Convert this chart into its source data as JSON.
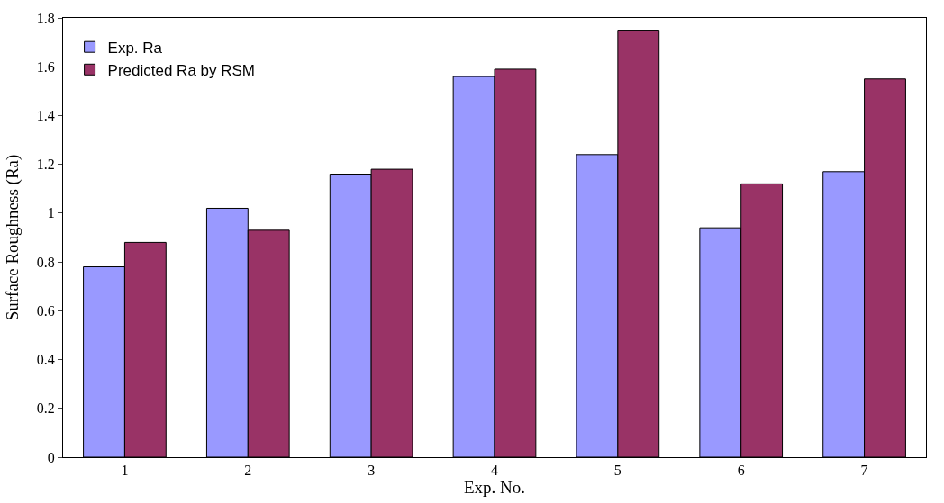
{
  "chart_data": {
    "type": "bar",
    "xlabel": "Exp. No.",
    "ylabel": "Surface Roughness (Ra)",
    "categories": [
      "1",
      "2",
      "3",
      "4",
      "5",
      "6",
      "7"
    ],
    "series": [
      {
        "name": "Exp. Ra",
        "color": "#9999ff",
        "values": [
          0.78,
          1.02,
          1.16,
          1.56,
          1.24,
          0.94,
          1.17
        ]
      },
      {
        "name": "Predicted Ra by RSM",
        "color": "#993366",
        "values": [
          0.88,
          0.93,
          1.18,
          1.59,
          1.75,
          1.12,
          1.55
        ]
      }
    ],
    "ylim": [
      0,
      1.8
    ],
    "yticks": [
      0,
      0.2,
      0.4,
      0.6,
      0.8,
      1,
      1.2,
      1.4,
      1.6,
      1.8
    ],
    "grid": false,
    "legend": "top left"
  }
}
